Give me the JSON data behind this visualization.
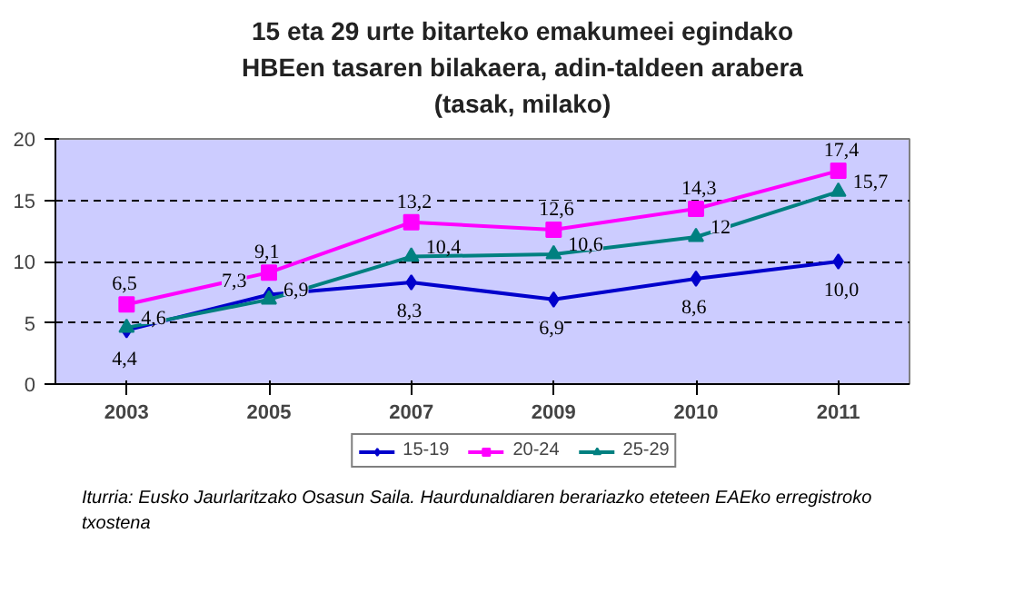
{
  "chart_data": {
    "type": "line",
    "title": "15 eta 29 urte bitarteko emakumeei egindako HBEen tasaren bilakaera, adin-taldeen arabera (tasak, milako)",
    "categories": [
      "2003",
      "2005",
      "2007",
      "2009",
      "2010",
      "2011"
    ],
    "ylim": [
      0,
      20
    ],
    "yticks": [
      0,
      5,
      10,
      15,
      20
    ],
    "grid": "y",
    "legend": "bottom",
    "series": [
      {
        "name": "15-19",
        "color": "#0000cc",
        "marker": "diamond",
        "values": [
          4.4,
          7.3,
          8.3,
          6.9,
          8.6,
          10.0
        ],
        "value_labels": [
          "4,4",
          "7,3",
          "8,3",
          "6,9",
          "8,6",
          "10,0"
        ]
      },
      {
        "name": "20-24",
        "color": "#ff00ff",
        "marker": "square",
        "values": [
          6.5,
          9.1,
          13.2,
          12.6,
          14.3,
          17.4
        ],
        "value_labels": [
          "6,5",
          "9,1",
          "13,2",
          "12,6",
          "14,3",
          "17,4"
        ]
      },
      {
        "name": "25-29",
        "color": "#008080",
        "marker": "triangle",
        "values": [
          4.6,
          6.9,
          10.4,
          10.6,
          12,
          15.7
        ],
        "value_labels": [
          "4,6",
          "6,9",
          "10,4",
          "10,6",
          "12",
          "15,7"
        ]
      }
    ],
    "annotations": [
      "Iturria: Eusko Jaurlaritzako Osasun Saila.  Haurdunaldiaren berariazko eteteen EAEko erregistroko txostena"
    ]
  }
}
